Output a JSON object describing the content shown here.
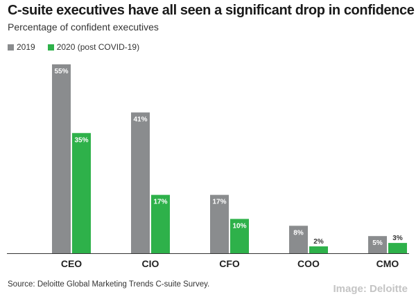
{
  "chart_data": {
    "type": "bar",
    "title": "C-suite executives have all seen a significant drop in confidence",
    "subtitle": "Percentage of confident executives",
    "categories": [
      "CEO",
      "CIO",
      "CFO",
      "COO",
      "CMO"
    ],
    "series": [
      {
        "name": "2019",
        "color": "#8a8c8e",
        "values": [
          55,
          41,
          17,
          8,
          5
        ],
        "labels": [
          "55%",
          "41%",
          "17%",
          "8%",
          "5%"
        ]
      },
      {
        "name": "2020 (post COVID-19)",
        "color": "#2eb14a",
        "values": [
          35,
          17,
          10,
          2,
          3
        ],
        "labels": [
          "35%",
          "17%",
          "10%",
          "2%",
          "3%"
        ]
      }
    ],
    "ylim": [
      0,
      55
    ],
    "xlabel": "",
    "ylabel": "",
    "grid": false,
    "legend_position": "top-left"
  },
  "footer": {
    "source": "Source: Deloitte Global Marketing Trends C-suite Survey.",
    "credit": "Image: Deloitte"
  }
}
